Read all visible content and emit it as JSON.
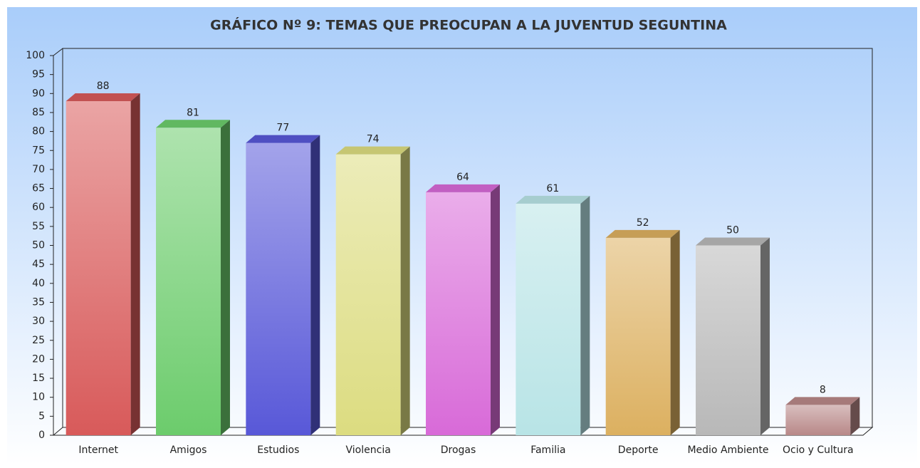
{
  "chart_data": {
    "type": "bar3d",
    "title": "GRÁFICO Nº 9: TEMAS QUE PREOCUPAN A LA JUVENTUD SEGUNTINA",
    "categories": [
      "Internet",
      "Amigos",
      "Estudios",
      "Violencia",
      "Drogas",
      "Familia",
      "Deporte",
      "Medio Ambiente",
      "Ocio y Cultura"
    ],
    "values": [
      88,
      81,
      77,
      74,
      64,
      61,
      52,
      50,
      8
    ],
    "colors": [
      "#d85a5a",
      "#6ccc6c",
      "#5858d8",
      "#dcdc80",
      "#d86ad8",
      "#b8e4e6",
      "#dcb060",
      "#b8b8b8",
      "#b88888"
    ],
    "ylim": [
      0,
      100
    ],
    "yticks": [
      0,
      5,
      10,
      15,
      20,
      25,
      30,
      35,
      40,
      45,
      50,
      55,
      60,
      65,
      70,
      75,
      80,
      85,
      90,
      95,
      100
    ],
    "grid": false
  }
}
